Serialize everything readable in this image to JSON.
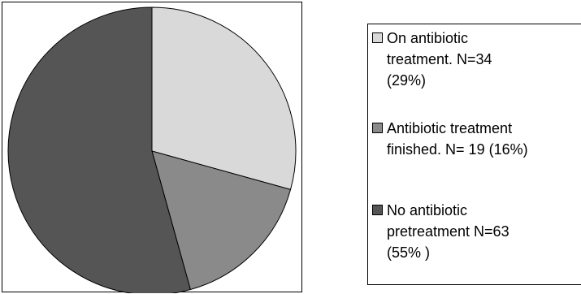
{
  "chart_data": {
    "type": "pie",
    "title": "",
    "slices": [
      {
        "label": "On antibiotic treatment. N=34 (29%)",
        "lines": [
          "On antibiotic",
          "treatment. N=34",
          "(29%)"
        ],
        "value": 34,
        "percent": 29,
        "color": "#d9d9d9"
      },
      {
        "label": "Antibiotic treatment finished. N= 19 (16%)",
        "lines": [
          "Antibiotic treatment",
          "finished. N= 19 (16%)"
        ],
        "value": 19,
        "percent": 16,
        "color": "#8a8a8a"
      },
      {
        "label": "No antibiotic pretreatment N=63 (55% )",
        "lines": [
          "No antibiotic",
          "pretreatment N=63",
          "(55% )"
        ],
        "value": 63,
        "percent": 55,
        "color": "#555555"
      }
    ],
    "start_angle": "12 o'clock",
    "direction": "clockwise",
    "legend_position": "right"
  }
}
